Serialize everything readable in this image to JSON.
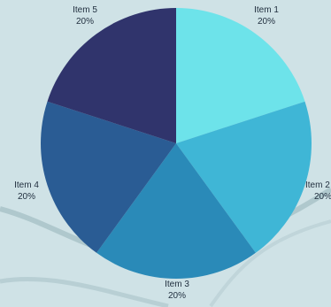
{
  "chart_data": {
    "type": "pie",
    "title": "",
    "start_angle_deg": 0,
    "direction": "clockwise",
    "slices": [
      {
        "label": "Item 1",
        "value": 20,
        "value_label": "20%",
        "color": "#6de3ea"
      },
      {
        "label": "Item 2",
        "value": 20,
        "value_label": "20%",
        "color": "#3fb6d6"
      },
      {
        "label": "Item 3",
        "value": 20,
        "value_label": "20%",
        "color": "#2a8ab8"
      },
      {
        "label": "Item 4",
        "value": 20,
        "value_label": "20%",
        "color": "#2a5c94"
      },
      {
        "label": "Item 5",
        "value": 20,
        "value_label": "20%",
        "color": "#30346c"
      }
    ]
  },
  "background": {
    "color": "#cfe2e6",
    "swoosh_color": "#a9c3c8"
  }
}
